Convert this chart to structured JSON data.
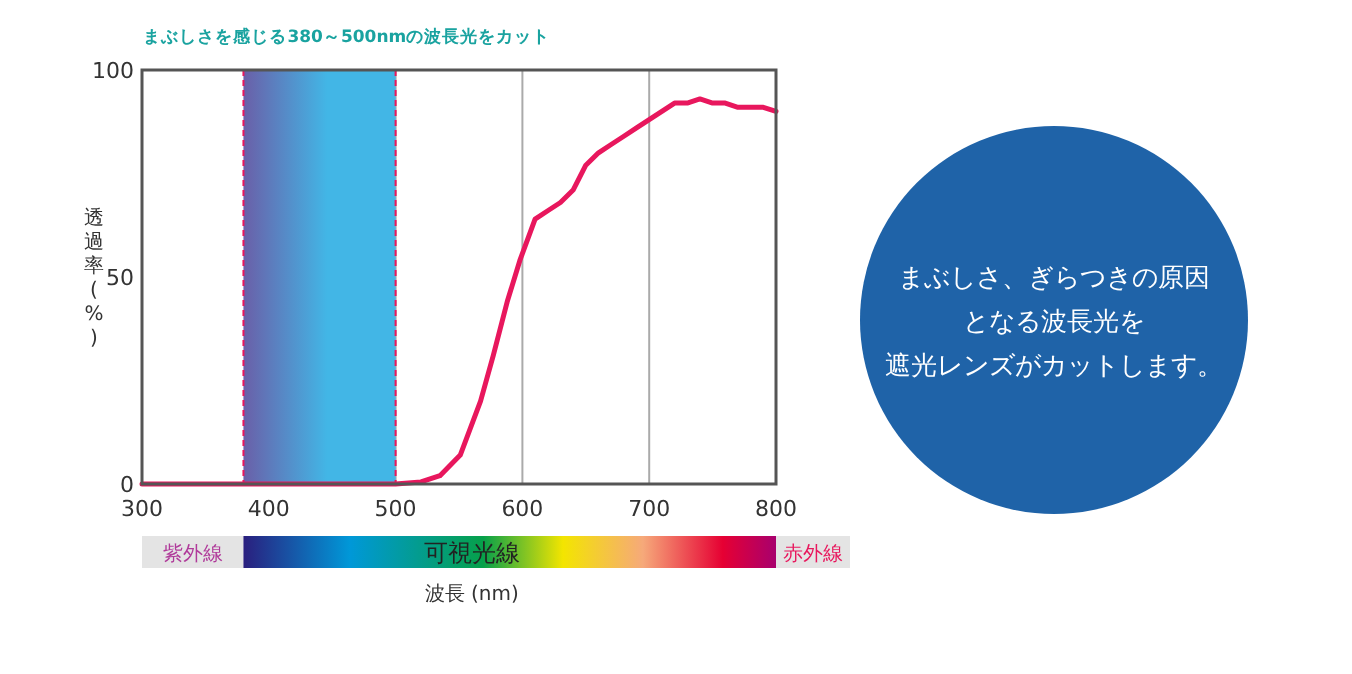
{
  "chart_data": [
    {
      "type": "line",
      "xlabel": "波長 (nm)",
      "ylabel": "透過率(%)",
      "xlim": [
        300,
        800
      ],
      "ylim": [
        0,
        100
      ],
      "xticks": [
        300,
        400,
        500,
        600,
        700,
        800
      ],
      "yticks": [
        0,
        50,
        100
      ],
      "grid": "x",
      "marker": "none",
      "line_style": "solid",
      "series": [
        {
          "color": "#e8175d",
          "x": [
            300,
            380,
            450,
            500,
            520,
            535,
            551,
            567,
            577,
            588,
            598,
            610,
            620,
            630,
            640,
            650,
            660,
            670,
            680,
            690,
            700,
            710,
            720,
            730,
            740,
            750,
            760,
            770,
            780,
            790,
            800
          ],
          "values": [
            0,
            0,
            0,
            0,
            0.5,
            2,
            7,
            20,
            31,
            44,
            54,
            64,
            66,
            68,
            71,
            77,
            80,
            82,
            84,
            86,
            88,
            90,
            92,
            92,
            93,
            92,
            92,
            91,
            91,
            91,
            90
          ]
        }
      ],
      "bands": [
        {
          "axis": "x",
          "from": 380,
          "to": 500,
          "label": "まぶしさを感じる380～500nmの波長光をカット",
          "color": "#42b6e6"
        }
      ],
      "annotations": [
        "紫外線",
        "可視光線",
        "赤外線"
      ]
    },
    {
      "type": "other",
      "annotations": [
        "まぶしさ、ぎらつきの原因",
        "となる波長光を",
        "遮光レンズがカットします。"
      ]
    }
  ]
}
